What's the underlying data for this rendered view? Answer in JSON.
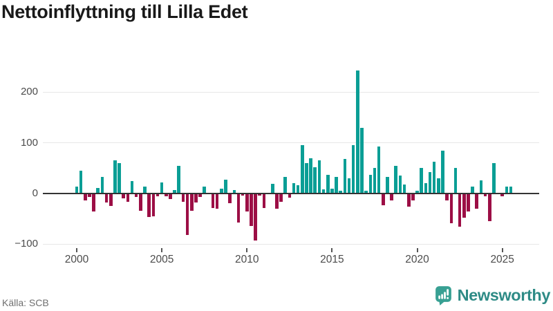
{
  "title": "Nettoinflyttning till Lilla Edet",
  "source": "Källa: SCB",
  "brand": {
    "name": "Newsworthy",
    "icon": "newsworthy-speech-bubble-chart-icon"
  },
  "colors": {
    "positive_bar": "#0a9e95",
    "negative_bar": "#9c0e45",
    "zero_line": "#333333",
    "gridline": "#e7e7e7",
    "axis_text": "#4b4b4b",
    "title_text": "#191919",
    "source_text": "#6f6f6f",
    "brand_teal": "#2e8b86"
  },
  "chart_data": {
    "type": "bar",
    "title": "Nettoinflyttning till Lilla Edet",
    "xlabel": "",
    "ylabel": "",
    "frequency": "quarterly",
    "x_start": "2000 Q1",
    "x_end": "2025 Q3",
    "x_tick_labels": [
      "2000",
      "2005",
      "2010",
      "2015",
      "2020",
      "2025"
    ],
    "y_ticks": [
      200,
      100,
      0,
      -100
    ],
    "ylim": [
      -110,
      255
    ],
    "grid": true,
    "legend": false,
    "values": [
      14,
      45,
      -14,
      -7,
      -35,
      11,
      33,
      -18,
      -24,
      66,
      60,
      -10,
      -17,
      25,
      -7,
      -34,
      13,
      -46,
      -45,
      -5,
      22,
      -6,
      -11,
      7,
      54,
      -17,
      -82,
      -34,
      -18,
      -7,
      13,
      0,
      -28,
      -30,
      10,
      27,
      -19,
      7,
      -57,
      -4,
      -36,
      -64,
      -93,
      -4,
      -28,
      0,
      19,
      -30,
      -17,
      33,
      -8,
      21,
      17,
      95,
      60,
      69,
      52,
      65,
      8,
      37,
      10,
      33,
      5,
      68,
      30,
      95,
      243,
      129,
      5,
      37,
      50,
      92,
      -23,
      33,
      -13,
      55,
      36,
      18,
      -26,
      -14,
      5,
      50,
      20,
      42,
      63,
      30,
      85,
      -13,
      -59,
      50,
      -66,
      -48,
      -36,
      14,
      -30,
      26,
      -5,
      -55,
      60,
      0,
      -5,
      14,
      14
    ]
  }
}
